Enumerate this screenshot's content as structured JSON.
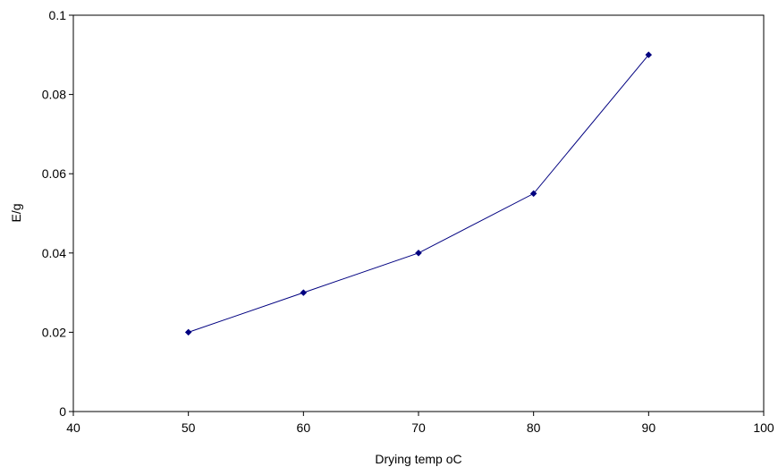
{
  "chart_data": {
    "type": "line",
    "title": "",
    "xlabel": "Drying temp oC",
    "ylabel": "E/g",
    "xlim": [
      40,
      100
    ],
    "ylim": [
      0,
      0.1
    ],
    "x_ticks": [
      "40",
      "50",
      "60",
      "70",
      "80",
      "90",
      "100"
    ],
    "y_ticks": [
      "0",
      "0.02",
      "0.04",
      "0.06",
      "0.08",
      "0.1"
    ],
    "grid": false,
    "legend": "none",
    "series": [
      {
        "color": "#000080",
        "marker": "diamond",
        "x": [
          50,
          60,
          70,
          80,
          90
        ],
        "y": [
          0.02,
          0.03,
          0.04,
          0.055,
          0.09
        ]
      }
    ]
  }
}
